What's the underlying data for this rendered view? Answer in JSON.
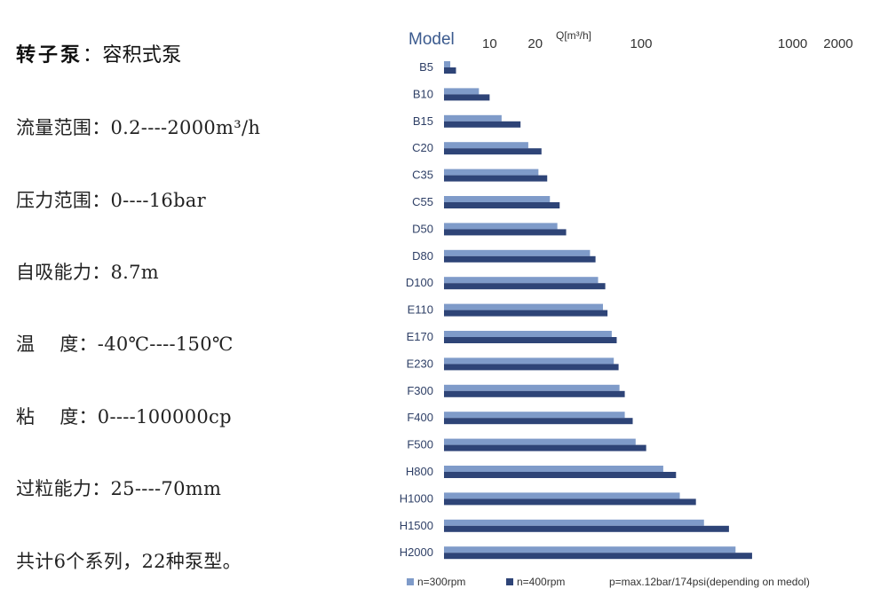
{
  "specs": {
    "title_bold": "转子泵",
    "title_sep": "：",
    "title_rest": "容积式泵",
    "lines": [
      "流量范围：0.2----2000m³/h",
      "压力范围：0----16bar",
      "自吸能力：8.7m",
      "温    度：-40℃----150℃",
      "粘    度：0----100000cp",
      "过粒能力：25----70mm",
      "共计6个系列，22种泵型。"
    ]
  },
  "chart_data": {
    "type": "bar",
    "orientation": "horizontal",
    "ylabel": "Model",
    "xlabel": "Q[m³/h]",
    "x_scale": "log",
    "xlim": [
      5,
      3000
    ],
    "x_ticks": [
      {
        "label": "10",
        "value": 10
      },
      {
        "label": "20",
        "value": 20
      },
      {
        "label": "100",
        "value": 100
      },
      {
        "label": "1000",
        "value": 1000
      },
      {
        "label": "2000",
        "value": 2000
      }
    ],
    "categories": [
      "B5",
      "B10",
      "B15",
      "C20",
      "C35",
      "C55",
      "D50",
      "D80",
      "D100",
      "E110",
      "E170",
      "E230",
      "F300",
      "F400",
      "F500",
      "H800",
      "H1000",
      "H1500",
      "H2000"
    ],
    "series": [
      {
        "name": "n=300rpm",
        "color": "#7f9bc9",
        "values": [
          5.5,
          8.5,
          12,
          18,
          21,
          25,
          28,
          46,
          52,
          56,
          64,
          66,
          72,
          78,
          92,
          140,
          180,
          260,
          420
        ]
      },
      {
        "name": "n=400rpm",
        "color": "#2e4477",
        "values": [
          6,
          10,
          16,
          22,
          24,
          29,
          32,
          50,
          58,
          60,
          69,
          71,
          78,
          88,
          108,
          170,
          230,
          380,
          540
        ]
      }
    ],
    "note": "p=max.12bar/174psi(depending on medol)",
    "grid": false,
    "legend_position": "bottom"
  }
}
